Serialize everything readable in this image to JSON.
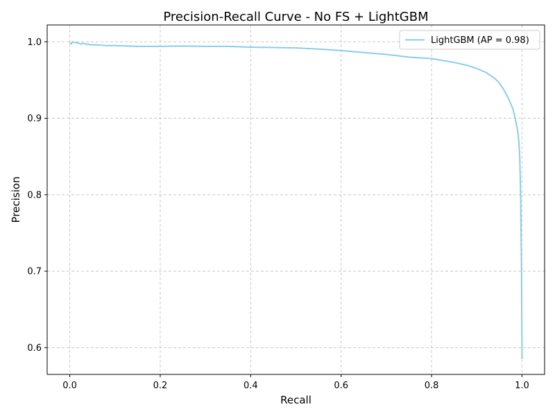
{
  "chart_data": {
    "type": "line",
    "title": "Precision-Recall Curve - No FS + LightGBM",
    "xlabel": "Recall",
    "ylabel": "Precision",
    "xlim": [
      -0.05,
      1.05
    ],
    "ylim": [
      0.565,
      1.022
    ],
    "xticks": [
      0.0,
      0.2,
      0.4,
      0.6,
      0.8,
      1.0
    ],
    "yticks": [
      0.6,
      0.7,
      0.8,
      0.9,
      1.0
    ],
    "xtick_labels": [
      "0.0",
      "0.2",
      "0.4",
      "0.6",
      "0.8",
      "1.0"
    ],
    "ytick_labels": [
      "0.6",
      "0.7",
      "0.8",
      "0.9",
      "1.0"
    ],
    "grid": true,
    "legend_position": "top-right",
    "series": [
      {
        "name": "LightGBM (AP = 0.98)",
        "color": "#87ceeb",
        "x": [
          0.0,
          0.003,
          0.006,
          0.01,
          0.015,
          0.02,
          0.025,
          0.03,
          0.035,
          0.04,
          0.045,
          0.05,
          0.06,
          0.08,
          0.1,
          0.15,
          0.2,
          0.25,
          0.3,
          0.35,
          0.4,
          0.45,
          0.5,
          0.55,
          0.6,
          0.65,
          0.7,
          0.75,
          0.8,
          0.85,
          0.88,
          0.9,
          0.92,
          0.94,
          0.95,
          0.96,
          0.97,
          0.98,
          0.985,
          0.99,
          0.993,
          0.995,
          0.997,
          0.998,
          0.999,
          0.9995,
          1.0,
          1.0
        ],
        "y": [
          0.999,
          0.997,
          1.0,
          0.999,
          0.999,
          0.998,
          0.997,
          0.998,
          0.997,
          0.997,
          0.996,
          0.996,
          0.996,
          0.995,
          0.995,
          0.994,
          0.994,
          0.9945,
          0.994,
          0.994,
          0.993,
          0.9925,
          0.992,
          0.9905,
          0.9885,
          0.986,
          0.9835,
          0.98,
          0.978,
          0.973,
          0.969,
          0.965,
          0.96,
          0.952,
          0.946,
          0.937,
          0.926,
          0.912,
          0.9,
          0.885,
          0.87,
          0.85,
          0.8,
          0.75,
          0.7,
          0.64,
          0.6,
          0.585
        ]
      }
    ]
  }
}
